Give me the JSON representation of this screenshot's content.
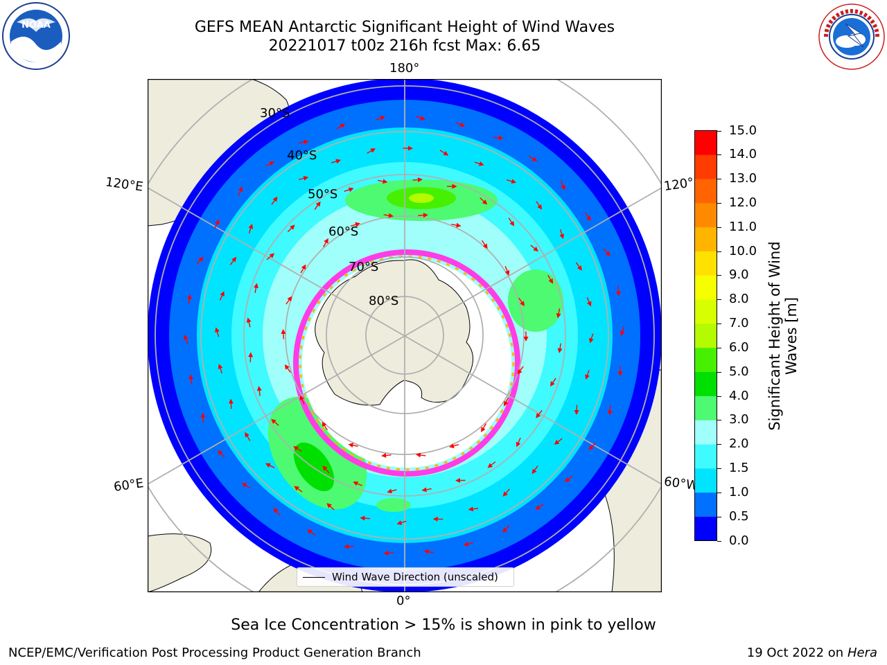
{
  "header": {
    "title_line1": "GEFS MEAN Antarctic Significant Height of Wind Waves",
    "title_line2": "20221017 t00z 216h fcst   Max: 6.65"
  },
  "map": {
    "longitude_labels": {
      "top": "180°",
      "bottom": "0°",
      "left_upper": "120°E",
      "left_lower": "60°E",
      "right_upper": "120°",
      "right_lower": "60°W"
    },
    "latitude_labels": [
      "30°S",
      "40°S",
      "50°S",
      "60°S",
      "70°S",
      "80°S"
    ],
    "legend_label": "Wind Wave Direction (unscaled)",
    "land_color": "#eeecdd",
    "arrow_color": "#ff0000"
  },
  "colorbar": {
    "label": "Significant Height of Wind Waves [m]",
    "ticks": [
      "0.0",
      "0.5",
      "1.0",
      "1.5",
      "2.0",
      "3.0",
      "4.0",
      "5.0",
      "6.0",
      "7.0",
      "8.0",
      "9.0",
      "10.0",
      "11.0",
      "12.0",
      "13.0",
      "14.0",
      "15.0"
    ],
    "colors": [
      "#0000ff",
      "#0070ff",
      "#00e4ff",
      "#3ffaff",
      "#a0fffa",
      "#4dfa72",
      "#00e000",
      "#46f000",
      "#b4fa00",
      "#d8ff00",
      "#f5ff00",
      "#ffe100",
      "#ffb400",
      "#ff8a00",
      "#ff6400",
      "#ff3c00",
      "#ff0000"
    ]
  },
  "footer": {
    "note": "Sea Ice Concentration > 15% is shown in pink to yellow",
    "left": "NCEP/EMC/Verification Post Processing Product Generation Branch",
    "right_prefix": "19 Oct 2022 on ",
    "right_host": "Hera"
  },
  "logos": {
    "left": "noaa-logo",
    "right": "nws-logo",
    "left_text": "NOAA"
  }
}
